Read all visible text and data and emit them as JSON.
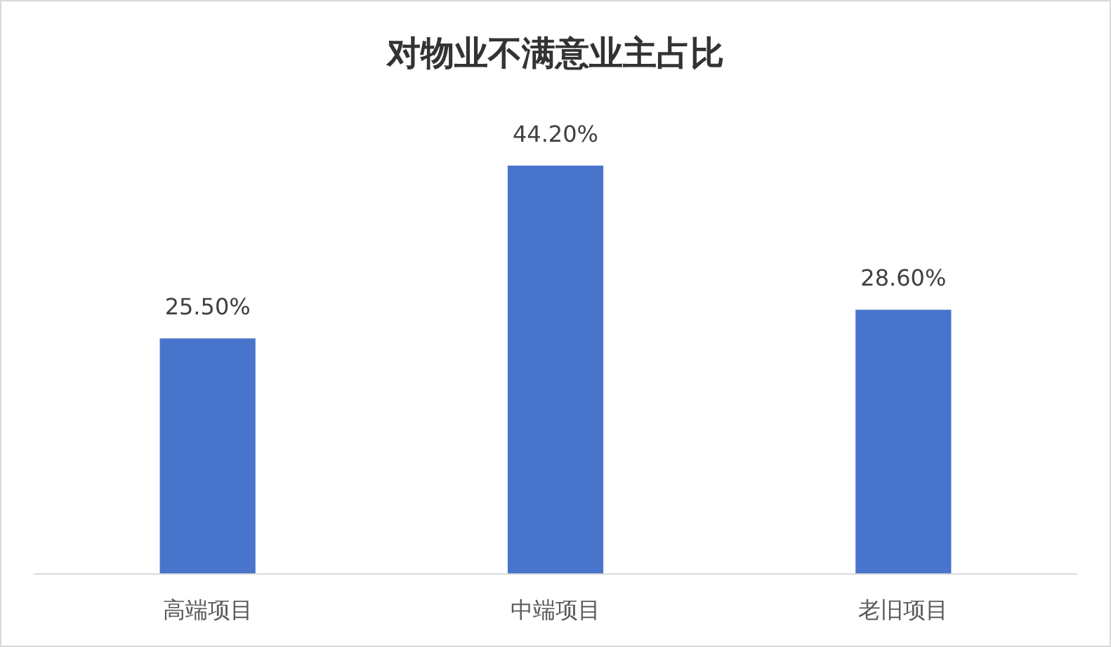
{
  "chart_data": {
    "type": "bar",
    "title": "对物业不满意业主占比",
    "categories": [
      "高端项目",
      "中端项目",
      "老旧项目"
    ],
    "values": [
      25.5,
      44.2,
      28.6
    ],
    "value_labels": [
      "25.50%",
      "44.20%",
      "28.60%"
    ],
    "color": "#4874cb"
  }
}
